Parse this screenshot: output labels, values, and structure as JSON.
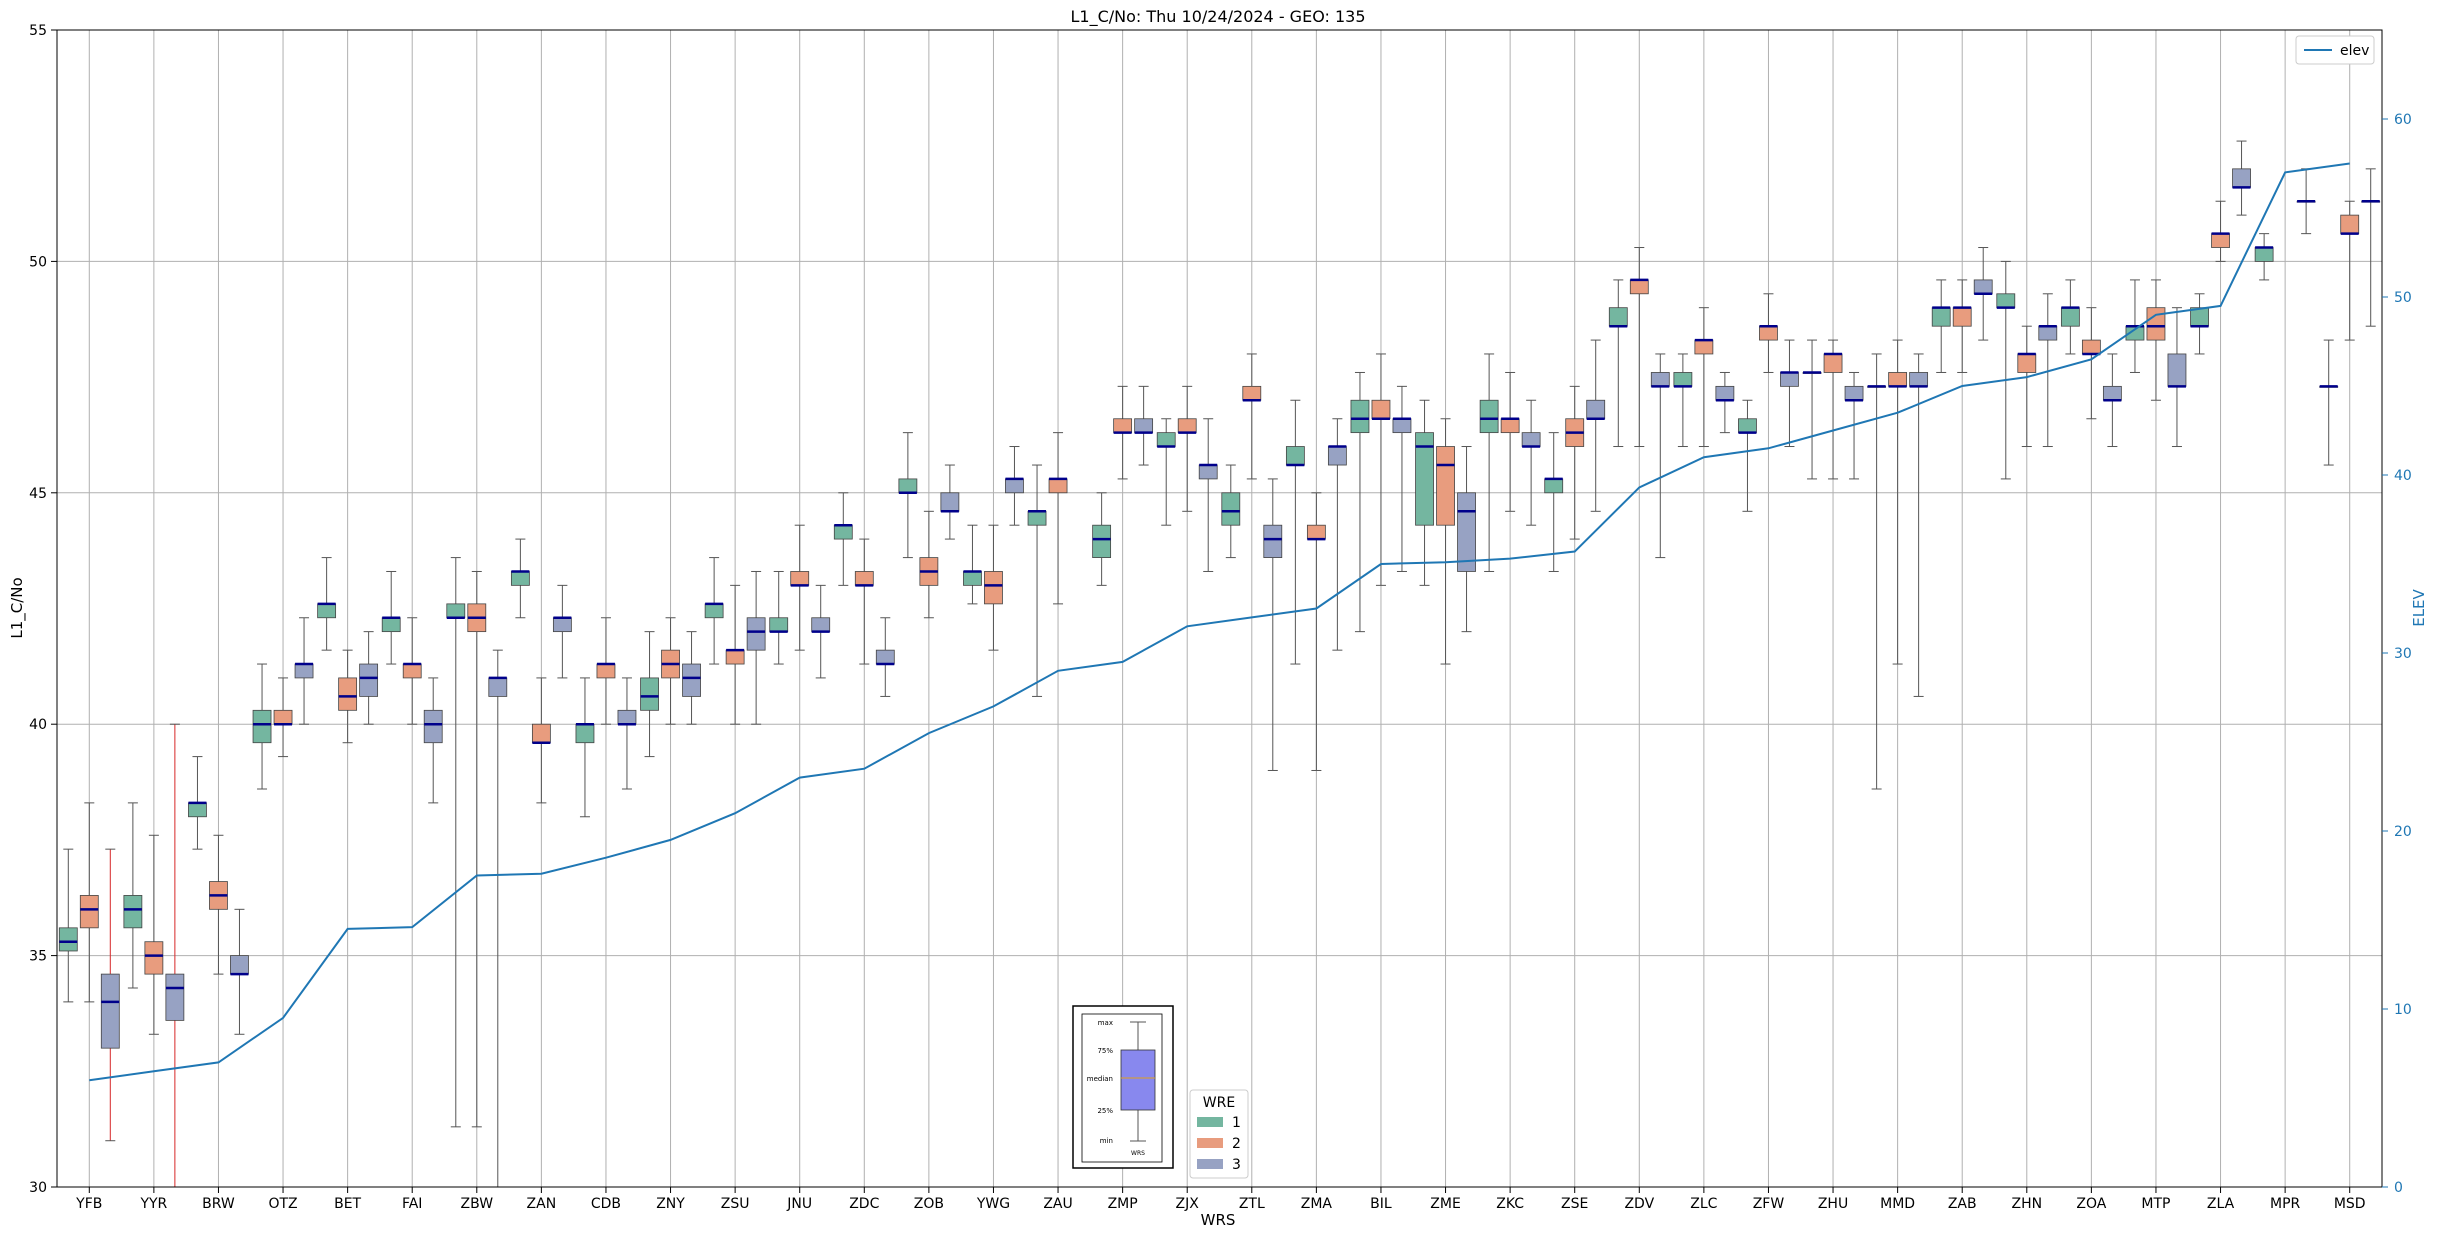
{
  "chart_data": {
    "type": "box",
    "title": "L1_C/No: Thu 10/24/2024 - GEO: 135",
    "xlabel": "WRS",
    "ylabel": "L1_C/No",
    "ylabel_right": "ELEV",
    "ylim": [
      30,
      55
    ],
    "ylim_right": [
      0,
      65
    ],
    "yticks": [
      "30",
      "35",
      "40",
      "45",
      "50",
      "55"
    ],
    "yticks_right": [
      "0",
      "10",
      "20",
      "30",
      "40",
      "50",
      "60"
    ],
    "grid": true,
    "legend_line": {
      "label": "elev",
      "color": "#1f77b4",
      "position": "top-right"
    },
    "legend_box": {
      "title": "WRE",
      "position": "bottom-center",
      "entries": [
        "1",
        "2",
        "3"
      ]
    },
    "series_colors": {
      "1": "#74b6a0",
      "2": "#e89c7e",
      "3": "#97a2c3"
    },
    "median_color": "#00008b",
    "whisker_highlight_color": "#d62728",
    "inset": {
      "labels": [
        "max",
        "75%",
        "median",
        "25%",
        "min"
      ],
      "xlabel": "WRS"
    },
    "categories": [
      "YFB",
      "YYR",
      "BRW",
      "OTZ",
      "BET",
      "FAI",
      "ZBW",
      "ZAN",
      "CDB",
      "ZNY",
      "ZSU",
      "JNU",
      "ZDC",
      "ZOB",
      "YWG",
      "ZAU",
      "ZMP",
      "ZJX",
      "ZTL",
      "ZMA",
      "BIL",
      "ZME",
      "ZKC",
      "ZSE",
      "ZDV",
      "ZLC",
      "ZFW",
      "ZHU",
      "MMD",
      "ZAB",
      "ZHN",
      "ZOA",
      "MTP",
      "ZLA",
      "MPR",
      "MSD"
    ],
    "elev": [
      6,
      6.5,
      7,
      9.5,
      14.5,
      14.6,
      17.5,
      17.6,
      18.5,
      19.5,
      21,
      23,
      23.5,
      25.5,
      27,
      29,
      29.5,
      31.5,
      32,
      32.5,
      35,
      35.1,
      35.3,
      35.7,
      39.3,
      41,
      41.5,
      42.5,
      43.5,
      45,
      45.5,
      46.5,
      49,
      49.5,
      57,
      57.5
    ],
    "boxes": [
      {
        "cat": "YFB",
        "wre": 1,
        "min": 34,
        "q1": 35.1,
        "med": 35.3,
        "q3": 35.6,
        "max": 37.3
      },
      {
        "cat": "YFB",
        "wre": 2,
        "min": 34,
        "q1": 35.6,
        "med": 36,
        "q3": 36.3,
        "max": 38.3
      },
      {
        "cat": "YFB",
        "wre": 3,
        "min": 31,
        "q1": 33,
        "med": 34,
        "q3": 34.6,
        "max": 37.3,
        "red": true
      },
      {
        "cat": "YYR",
        "wre": 1,
        "min": 34.3,
        "q1": 35.6,
        "med": 36,
        "q3": 36.3,
        "max": 38.3
      },
      {
        "cat": "YYR",
        "wre": 2,
        "min": 33.3,
        "q1": 34.6,
        "med": 35,
        "q3": 35.3,
        "max": 37.6
      },
      {
        "cat": "YYR",
        "wre": 3,
        "min": 30,
        "q1": 33.6,
        "med": 34.3,
        "q3": 34.6,
        "max": 40,
        "red": true
      },
      {
        "cat": "BRW",
        "wre": 1,
        "min": 37.3,
        "q1": 38,
        "med": 38.3,
        "q3": 38.3,
        "max": 39.3
      },
      {
        "cat": "BRW",
        "wre": 2,
        "min": 34.6,
        "q1": 36,
        "med": 36.3,
        "q3": 36.6,
        "max": 37.6
      },
      {
        "cat": "BRW",
        "wre": 3,
        "min": 33.3,
        "q1": 34.6,
        "med": 34.6,
        "q3": 35,
        "max": 36
      },
      {
        "cat": "OTZ",
        "wre": 1,
        "min": 38.6,
        "q1": 39.6,
        "med": 40,
        "q3": 40.3,
        "max": 41.3
      },
      {
        "cat": "OTZ",
        "wre": 2,
        "min": 39.3,
        "q1": 40,
        "med": 40,
        "q3": 40.3,
        "max": 41
      },
      {
        "cat": "OTZ",
        "wre": 3,
        "min": 40,
        "q1": 41,
        "med": 41.3,
        "q3": 41.3,
        "max": 42.3
      },
      {
        "cat": "BET",
        "wre": 1,
        "min": 41.6,
        "q1": 42.3,
        "med": 42.6,
        "q3": 42.6,
        "max": 43.6
      },
      {
        "cat": "BET",
        "wre": 2,
        "min": 39.6,
        "q1": 40.3,
        "med": 40.6,
        "q3": 41,
        "max": 41.6
      },
      {
        "cat": "BET",
        "wre": 3,
        "min": 40,
        "q1": 40.6,
        "med": 41,
        "q3": 41.3,
        "max": 42
      },
      {
        "cat": "FAI",
        "wre": 1,
        "min": 41.3,
        "q1": 42,
        "med": 42.3,
        "q3": 42.3,
        "max": 43.3
      },
      {
        "cat": "FAI",
        "wre": 2,
        "min": 40,
        "q1": 41,
        "med": 41.3,
        "q3": 41.3,
        "max": 42.3
      },
      {
        "cat": "FAI",
        "wre": 3,
        "min": 38.3,
        "q1": 39.6,
        "med": 40,
        "q3": 40.3,
        "max": 41
      },
      {
        "cat": "ZBW",
        "wre": 1,
        "min": 31.3,
        "q1": 42.3,
        "med": 42.3,
        "q3": 42.6,
        "max": 43.6
      },
      {
        "cat": "ZBW",
        "wre": 2,
        "min": 31.3,
        "q1": 42,
        "med": 42.3,
        "q3": 42.6,
        "max": 43.3
      },
      {
        "cat": "ZBW",
        "wre": 3,
        "min": 30,
        "q1": 40.6,
        "med": 41,
        "q3": 41,
        "max": 41.6
      },
      {
        "cat": "ZAN",
        "wre": 1,
        "min": 42.3,
        "q1": 43,
        "med": 43.3,
        "q3": 43.3,
        "max": 44
      },
      {
        "cat": "ZAN",
        "wre": 2,
        "min": 38.3,
        "q1": 39.6,
        "med": 39.6,
        "q3": 40,
        "max": 41
      },
      {
        "cat": "ZAN",
        "wre": 3,
        "min": 41,
        "q1": 42,
        "med": 42.3,
        "q3": 42.3,
        "max": 43
      },
      {
        "cat": "CDB",
        "wre": 1,
        "min": 38,
        "q1": 39.6,
        "med": 40,
        "q3": 40,
        "max": 41
      },
      {
        "cat": "CDB",
        "wre": 2,
        "min": 40,
        "q1": 41,
        "med": 41.3,
        "q3": 41.3,
        "max": 42.3
      },
      {
        "cat": "CDB",
        "wre": 3,
        "min": 38.6,
        "q1": 40,
        "med": 40,
        "q3": 40.3,
        "max": 41
      },
      {
        "cat": "ZNY",
        "wre": 1,
        "min": 39.3,
        "q1": 40.3,
        "med": 40.6,
        "q3": 41,
        "max": 42
      },
      {
        "cat": "ZNY",
        "wre": 2,
        "min": 40,
        "q1": 41,
        "med": 41.3,
        "q3": 41.6,
        "max": 42.3
      },
      {
        "cat": "ZNY",
        "wre": 3,
        "min": 40,
        "q1": 40.6,
        "med": 41,
        "q3": 41.3,
        "max": 42
      },
      {
        "cat": "ZSU",
        "wre": 1,
        "min": 41.3,
        "q1": 42.3,
        "med": 42.6,
        "q3": 42.6,
        "max": 43.6
      },
      {
        "cat": "ZSU",
        "wre": 2,
        "min": 40,
        "q1": 41.3,
        "med": 41.6,
        "q3": 41.6,
        "max": 43
      },
      {
        "cat": "ZSU",
        "wre": 3,
        "min": 40,
        "q1": 41.6,
        "med": 42,
        "q3": 42.3,
        "max": 43.3
      },
      {
        "cat": "JNU",
        "wre": 1,
        "min": 41.3,
        "q1": 42,
        "med": 42,
        "q3": 42.3,
        "max": 43.3
      },
      {
        "cat": "JNU",
        "wre": 2,
        "min": 41.6,
        "q1": 43,
        "med": 43,
        "q3": 43.3,
        "max": 44.3
      },
      {
        "cat": "JNU",
        "wre": 3,
        "min": 41,
        "q1": 42,
        "med": 42,
        "q3": 42.3,
        "max": 43
      },
      {
        "cat": "ZDC",
        "wre": 1,
        "min": 43,
        "q1": 44,
        "med": 44.3,
        "q3": 44.3,
        "max": 45
      },
      {
        "cat": "ZDC",
        "wre": 2,
        "min": 41.3,
        "q1": 43,
        "med": 43,
        "q3": 43.3,
        "max": 44
      },
      {
        "cat": "ZDC",
        "wre": 3,
        "min": 40.6,
        "q1": 41.3,
        "med": 41.3,
        "q3": 41.6,
        "max": 42.3
      },
      {
        "cat": "ZOB",
        "wre": 1,
        "min": 43.6,
        "q1": 45,
        "med": 45,
        "q3": 45.3,
        "max": 46.3
      },
      {
        "cat": "ZOB",
        "wre": 2,
        "min": 42.3,
        "q1": 43,
        "med": 43.3,
        "q3": 43.6,
        "max": 44.6
      },
      {
        "cat": "ZOB",
        "wre": 3,
        "min": 44,
        "q1": 44.6,
        "med": 44.6,
        "q3": 45,
        "max": 45.6
      },
      {
        "cat": "YWG",
        "wre": 1,
        "min": 42.6,
        "q1": 43,
        "med": 43.3,
        "q3": 43.3,
        "max": 44.3
      },
      {
        "cat": "YWG",
        "wre": 2,
        "min": 41.6,
        "q1": 42.6,
        "med": 43,
        "q3": 43.3,
        "max": 44.3
      },
      {
        "cat": "YWG",
        "wre": 3,
        "min": 44.3,
        "q1": 45,
        "med": 45.3,
        "q3": 45.3,
        "max": 46
      },
      {
        "cat": "ZAU",
        "wre": 1,
        "min": 40.6,
        "q1": 44.3,
        "med": 44.6,
        "q3": 44.6,
        "max": 45.6
      },
      {
        "cat": "ZAU",
        "wre": 2,
        "min": 42.6,
        "q1": 45,
        "med": 45.3,
        "q3": 45.3,
        "max": 46.3
      },
      {
        "cat": "ZMP",
        "wre": 1,
        "min": 43,
        "q1": 43.6,
        "med": 44,
        "q3": 44.3,
        "max": 45
      },
      {
        "cat": "ZMP",
        "wre": 2,
        "min": 45.3,
        "q1": 46.3,
        "med": 46.3,
        "q3": 46.6,
        "max": 47.3
      },
      {
        "cat": "ZMP",
        "wre": 3,
        "min": 45.6,
        "q1": 46.3,
        "med": 46.3,
        "q3": 46.6,
        "max": 47.3
      },
      {
        "cat": "ZJX",
        "wre": 1,
        "min": 44.3,
        "q1": 46,
        "med": 46,
        "q3": 46.3,
        "max": 46.6
      },
      {
        "cat": "ZJX",
        "wre": 2,
        "min": 44.6,
        "q1": 46.3,
        "med": 46.3,
        "q3": 46.6,
        "max": 47.3
      },
      {
        "cat": "ZJX",
        "wre": 3,
        "min": 43.3,
        "q1": 45.3,
        "med": 45.6,
        "q3": 45.6,
        "max": 46.6
      },
      {
        "cat": "ZTL",
        "wre": 1,
        "min": 43.6,
        "q1": 44.3,
        "med": 44.6,
        "q3": 45,
        "max": 45.6
      },
      {
        "cat": "ZTL",
        "wre": 2,
        "min": 45.3,
        "q1": 47,
        "med": 47,
        "q3": 47.3,
        "max": 48
      },
      {
        "cat": "ZTL",
        "wre": 3,
        "min": 39,
        "q1": 43.6,
        "med": 44,
        "q3": 44.3,
        "max": 45.3
      },
      {
        "cat": "ZMA",
        "wre": 1,
        "min": 41.3,
        "q1": 45.6,
        "med": 45.6,
        "q3": 46,
        "max": 47
      },
      {
        "cat": "ZMA",
        "wre": 2,
        "min": 39,
        "q1": 44,
        "med": 44,
        "q3": 44.3,
        "max": 45
      },
      {
        "cat": "ZMA",
        "wre": 3,
        "min": 41.6,
        "q1": 45.6,
        "med": 46,
        "q3": 46,
        "max": 46.6
      },
      {
        "cat": "BIL",
        "wre": 1,
        "min": 42,
        "q1": 46.3,
        "med": 46.6,
        "q3": 47,
        "max": 47.6
      },
      {
        "cat": "BIL",
        "wre": 2,
        "min": 43,
        "q1": 46.6,
        "med": 46.6,
        "q3": 47,
        "max": 48
      },
      {
        "cat": "BIL",
        "wre": 3,
        "min": 43.3,
        "q1": 46.3,
        "med": 46.6,
        "q3": 46.6,
        "max": 47.3
      },
      {
        "cat": "ZME",
        "wre": 1,
        "min": 43,
        "q1": 44.3,
        "med": 46,
        "q3": 46.3,
        "max": 47
      },
      {
        "cat": "ZME",
        "wre": 2,
        "min": 41.3,
        "q1": 44.3,
        "med": 45.6,
        "q3": 46,
        "max": 46.6
      },
      {
        "cat": "ZME",
        "wre": 3,
        "min": 42,
        "q1": 43.3,
        "med": 44.6,
        "q3": 45,
        "max": 46
      },
      {
        "cat": "ZKC",
        "wre": 1,
        "min": 43.3,
        "q1": 46.3,
        "med": 46.6,
        "q3": 47,
        "max": 48
      },
      {
        "cat": "ZKC",
        "wre": 2,
        "min": 44.6,
        "q1": 46.3,
        "med": 46.6,
        "q3": 46.6,
        "max": 47.6
      },
      {
        "cat": "ZKC",
        "wre": 3,
        "min": 44.3,
        "q1": 46,
        "med": 46,
        "q3": 46.3,
        "max": 47
      },
      {
        "cat": "ZSE",
        "wre": 1,
        "min": 43.3,
        "q1": 45,
        "med": 45.3,
        "q3": 45.3,
        "max": 46.3
      },
      {
        "cat": "ZSE",
        "wre": 2,
        "min": 44,
        "q1": 46,
        "med": 46.3,
        "q3": 46.6,
        "max": 47.3
      },
      {
        "cat": "ZSE",
        "wre": 3,
        "min": 44.6,
        "q1": 46.6,
        "med": 46.6,
        "q3": 47,
        "max": 48.3
      },
      {
        "cat": "ZDV",
        "wre": 1,
        "min": 46,
        "q1": 48.6,
        "med": 48.6,
        "q3": 49,
        "max": 49.6
      },
      {
        "cat": "ZDV",
        "wre": 2,
        "min": 46,
        "q1": 49.3,
        "med": 49.6,
        "q3": 49.6,
        "max": 50.3
      },
      {
        "cat": "ZDV",
        "wre": 3,
        "min": 43.6,
        "q1": 47.3,
        "med": 47.3,
        "q3": 47.6,
        "max": 48
      },
      {
        "cat": "ZLC",
        "wre": 1,
        "min": 46,
        "q1": 47.3,
        "med": 47.3,
        "q3": 47.6,
        "max": 48
      },
      {
        "cat": "ZLC",
        "wre": 2,
        "min": 46,
        "q1": 48,
        "med": 48.3,
        "q3": 48.3,
        "max": 49
      },
      {
        "cat": "ZLC",
        "wre": 3,
        "min": 46.3,
        "q1": 47,
        "med": 47,
        "q3": 47.3,
        "max": 47.6
      },
      {
        "cat": "ZFW",
        "wre": 1,
        "min": 44.6,
        "q1": 46.3,
        "med": 46.3,
        "q3": 46.6,
        "max": 47
      },
      {
        "cat": "ZFW",
        "wre": 2,
        "min": 47.6,
        "q1": 48.3,
        "med": 48.6,
        "q3": 48.6,
        "max": 49.3
      },
      {
        "cat": "ZFW",
        "wre": 3,
        "min": 46,
        "q1": 47.3,
        "med": 47.6,
        "q3": 47.6,
        "max": 48.3
      },
      {
        "cat": "ZHU",
        "wre": 1,
        "min": 45.3,
        "q1": 47.6,
        "med": 47.6,
        "q3": 47.6,
        "max": 48.3
      },
      {
        "cat": "ZHU",
        "wre": 2,
        "min": 45.3,
        "q1": 47.6,
        "med": 48,
        "q3": 48,
        "max": 48.3
      },
      {
        "cat": "ZHU",
        "wre": 3,
        "min": 45.3,
        "q1": 47,
        "med": 47,
        "q3": 47.3,
        "max": 47.6
      },
      {
        "cat": "MMD",
        "wre": 1,
        "min": 38.6,
        "q1": 47.3,
        "med": 47.3,
        "q3": 47.3,
        "max": 48
      },
      {
        "cat": "MMD",
        "wre": 2,
        "min": 41.3,
        "q1": 47.3,
        "med": 47.3,
        "q3": 47.6,
        "max": 48.3
      },
      {
        "cat": "MMD",
        "wre": 3,
        "min": 40.6,
        "q1": 47.3,
        "med": 47.3,
        "q3": 47.6,
        "max": 48
      },
      {
        "cat": "ZAB",
        "wre": 1,
        "min": 47.6,
        "q1": 48.6,
        "med": 49,
        "q3": 49,
        "max": 49.6
      },
      {
        "cat": "ZAB",
        "wre": 2,
        "min": 47.6,
        "q1": 48.6,
        "med": 49,
        "q3": 49,
        "max": 49.6
      },
      {
        "cat": "ZAB",
        "wre": 3,
        "min": 48.3,
        "q1": 49.3,
        "med": 49.3,
        "q3": 49.6,
        "max": 50.3
      },
      {
        "cat": "ZHN",
        "wre": 1,
        "min": 45.3,
        "q1": 49,
        "med": 49,
        "q3": 49.3,
        "max": 50
      },
      {
        "cat": "ZHN",
        "wre": 2,
        "min": 46,
        "q1": 47.6,
        "med": 48,
        "q3": 48,
        "max": 48.6
      },
      {
        "cat": "ZHN",
        "wre": 3,
        "min": 46,
        "q1": 48.3,
        "med": 48.6,
        "q3": 48.6,
        "max": 49.3
      },
      {
        "cat": "ZOA",
        "wre": 1,
        "min": 48,
        "q1": 48.6,
        "med": 49,
        "q3": 49,
        "max": 49.6
      },
      {
        "cat": "ZOA",
        "wre": 2,
        "min": 46.6,
        "q1": 48,
        "med": 48,
        "q3": 48.3,
        "max": 49
      },
      {
        "cat": "ZOA",
        "wre": 3,
        "min": 46,
        "q1": 47,
        "med": 47,
        "q3": 47.3,
        "max": 48
      },
      {
        "cat": "MTP",
        "wre": 1,
        "min": 47.6,
        "q1": 48.3,
        "med": 48.6,
        "q3": 48.6,
        "max": 49.6
      },
      {
        "cat": "MTP",
        "wre": 2,
        "min": 47,
        "q1": 48.3,
        "med": 48.6,
        "q3": 49,
        "max": 49.6
      },
      {
        "cat": "MTP",
        "wre": 3,
        "min": 46,
        "q1": 47.3,
        "med": 47.3,
        "q3": 48,
        "max": 49
      },
      {
        "cat": "ZLA",
        "wre": 1,
        "min": 48,
        "q1": 48.6,
        "med": 48.6,
        "q3": 49,
        "max": 49.3
      },
      {
        "cat": "ZLA",
        "wre": 2,
        "min": 50,
        "q1": 50.3,
        "med": 50.6,
        "q3": 50.6,
        "max": 51.3
      },
      {
        "cat": "ZLA",
        "wre": 3,
        "min": 51,
        "q1": 51.6,
        "med": 51.6,
        "q3": 52,
        "max": 52.6
      },
      {
        "cat": "MPR",
        "wre": 1,
        "min": 49.6,
        "q1": 50,
        "med": 50.3,
        "q3": 50.3,
        "max": 50.6
      },
      {
        "cat": "MPR",
        "wre": 3,
        "min": 50.6,
        "q1": 51.3,
        "med": 51.3,
        "q3": 51.3,
        "max": 52
      },
      {
        "cat": "MSD",
        "wre": 1,
        "min": 45.6,
        "q1": 47.3,
        "med": 47.3,
        "q3": 47.3,
        "max": 48.3
      },
      {
        "cat": "MSD",
        "wre": 2,
        "min": 48.3,
        "q1": 50.6,
        "med": 50.6,
        "q3": 51,
        "max": 51.3
      },
      {
        "cat": "MSD",
        "wre": 3,
        "min": 48.6,
        "q1": 51.3,
        "med": 51.3,
        "q3": 51.3,
        "max": 52
      }
    ]
  }
}
